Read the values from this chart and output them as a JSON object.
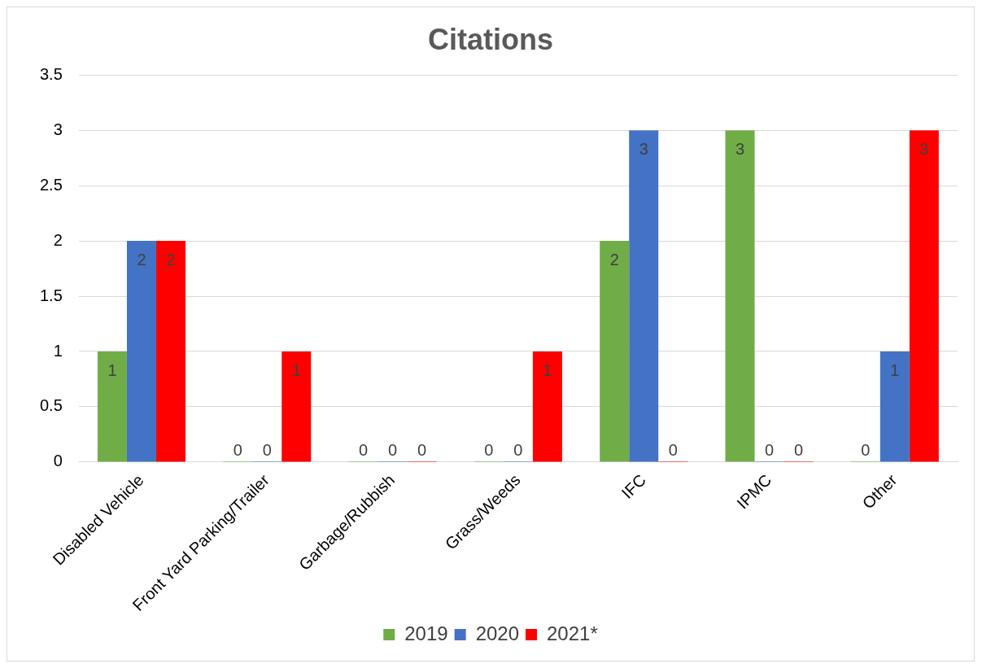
{
  "chart_data": {
    "type": "bar",
    "title": "Citations",
    "categories": [
      "Disabled Vehicle",
      "Front Yard Parking/Trailer",
      "Garbage/Rubbish",
      "Grass/Weeds",
      "IFC",
      "IPMC",
      "Other"
    ],
    "series": [
      {
        "name": "2019",
        "color": "#70ad47",
        "values": [
          1,
          0,
          0,
          0,
          2,
          3,
          0
        ]
      },
      {
        "name": "2020",
        "color": "#4472c4",
        "values": [
          2,
          0,
          0,
          0,
          3,
          0,
          1
        ]
      },
      {
        "name": "2021*",
        "color": "#ff0000",
        "values": [
          2,
          1,
          0,
          1,
          0,
          0,
          3
        ]
      }
    ],
    "ylim": [
      0,
      3.5
    ],
    "yticks": [
      0,
      0.5,
      1,
      1.5,
      2,
      2.5,
      3,
      3.5
    ],
    "grid": "y",
    "legend": "bottom",
    "data_labels": true
  }
}
